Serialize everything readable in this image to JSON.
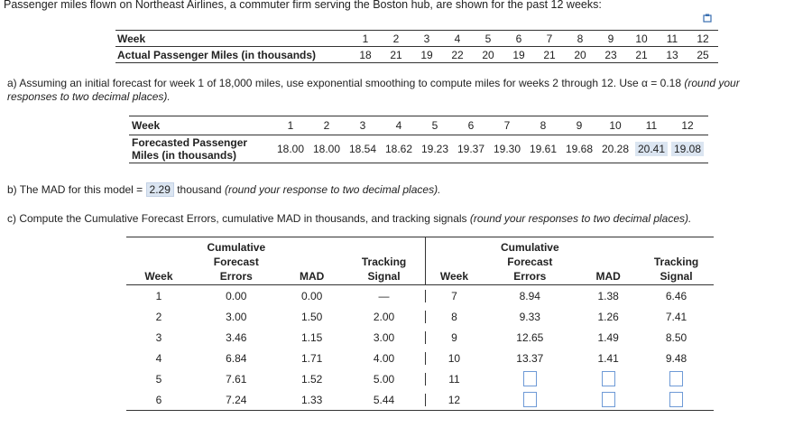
{
  "intro": "Passenger miles flown on Northeast Airlines, a commuter firm serving the Boston hub, are shown for the past 12 weeks:",
  "table1": {
    "row1_label": "Week",
    "row2_label": "Actual Passenger Miles (in thousands)",
    "weeks": [
      "1",
      "2",
      "3",
      "4",
      "5",
      "6",
      "7",
      "8",
      "9",
      "10",
      "11",
      "12"
    ],
    "miles": [
      "18",
      "21",
      "19",
      "22",
      "20",
      "19",
      "21",
      "20",
      "23",
      "21",
      "13",
      "25"
    ]
  },
  "part_a": {
    "text": "a) Assuming an initial forecast for week 1 of 18,000 miles, use exponential smoothing to compute miles for weeks 2 through 12. Use α = 0.18",
    "note1": "(round your",
    "note2": "responses to two decimal places)."
  },
  "table2": {
    "row1_label": "Week",
    "row2_label_line1": "Forecasted Passenger",
    "row2_label_line2": "Miles (in thousands)",
    "weeks": [
      "1",
      "2",
      "3",
      "4",
      "5",
      "6",
      "7",
      "8",
      "9",
      "10",
      "11",
      "12"
    ],
    "forecasts": [
      "18.00",
      "18.00",
      "18.54",
      "18.62",
      "19.23",
      "19.37",
      "19.30",
      "19.61",
      "19.68",
      "20.28",
      "20.41",
      "19.08"
    ]
  },
  "part_b": {
    "prefix": "b) The MAD for this model =",
    "value": "2.29",
    "unit": "thousand",
    "note": "(round your response to two decimal places)."
  },
  "part_c": {
    "text": "c) Compute the Cumulative Forecast Errors, cumulative MAD in thousands, and tracking signals",
    "note": "(round your responses to two decimal places)."
  },
  "table3": {
    "headers": {
      "week": "Week",
      "cfe_1": "Cumulative",
      "cfe_2": "Forecast",
      "cfe_3": "Errors",
      "mad": "MAD",
      "ts_1": "Tracking",
      "ts_2": "Signal"
    },
    "left": [
      {
        "week": "1",
        "cfe": "0.00",
        "mad": "0.00",
        "ts": "—"
      },
      {
        "week": "2",
        "cfe": "3.00",
        "mad": "1.50",
        "ts": "2.00"
      },
      {
        "week": "3",
        "cfe": "3.46",
        "mad": "1.15",
        "ts": "3.00"
      },
      {
        "week": "4",
        "cfe": "6.84",
        "mad": "1.71",
        "ts": "4.00"
      },
      {
        "week": "5",
        "cfe": "7.61",
        "mad": "1.52",
        "ts": "5.00"
      },
      {
        "week": "6",
        "cfe": "7.24",
        "mad": "1.33",
        "ts": "5.44"
      }
    ],
    "right": [
      {
        "week": "7",
        "cfe": "8.94",
        "mad": "1.38",
        "ts": "6.46"
      },
      {
        "week": "8",
        "cfe": "9.33",
        "mad": "1.26",
        "ts": "7.41"
      },
      {
        "week": "9",
        "cfe": "12.65",
        "mad": "1.49",
        "ts": "8.50"
      },
      {
        "week": "10",
        "cfe": "13.37",
        "mad": "1.41",
        "ts": "9.48"
      },
      {
        "week": "11",
        "cfe": "",
        "mad": "",
        "ts": ""
      },
      {
        "week": "12",
        "cfe": "",
        "mad": "",
        "ts": ""
      }
    ]
  }
}
